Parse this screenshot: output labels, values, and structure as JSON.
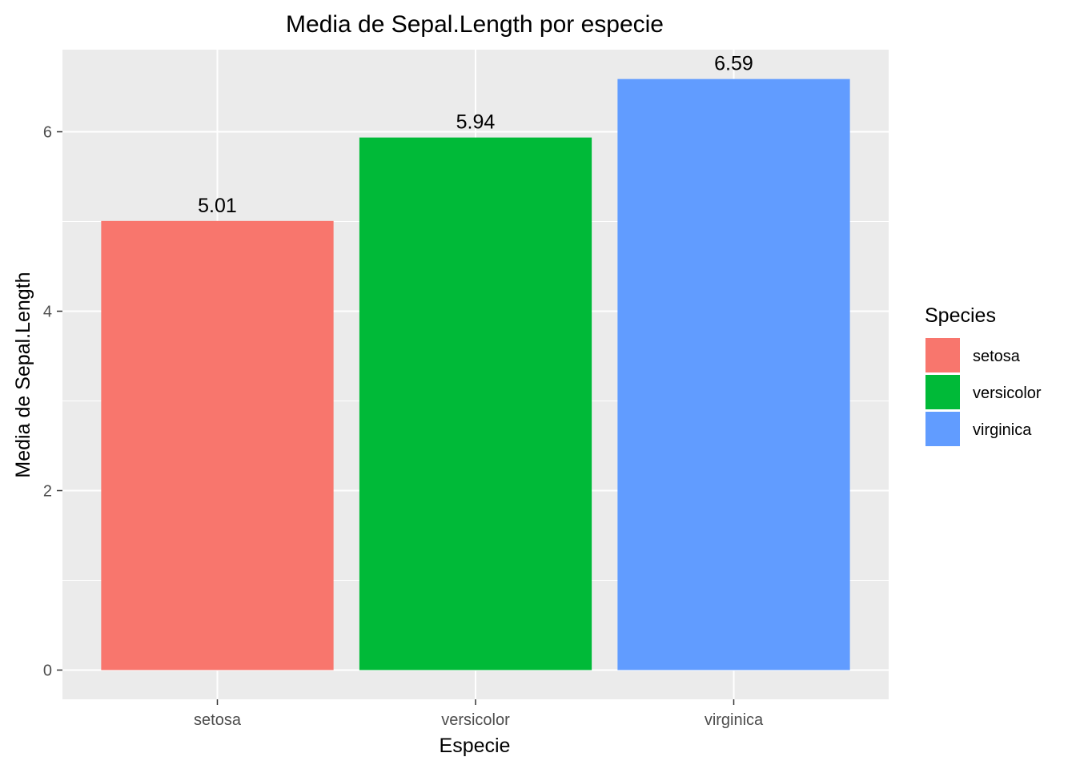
{
  "chart_data": {
    "type": "bar",
    "title": "Media de Sepal.Length por especie",
    "xlabel": "Especie",
    "ylabel": "Media de Sepal.Length",
    "categories": [
      "setosa",
      "versicolor",
      "virginica"
    ],
    "values": [
      5.006,
      5.936,
      6.588
    ],
    "value_labels": [
      "5.01",
      "5.94",
      "6.59"
    ],
    "colors": [
      "#F8766D",
      "#00BA38",
      "#619CFF"
    ],
    "ylim": [
      0,
      6.9
    ],
    "yticks": [
      0,
      2,
      4,
      6
    ],
    "ytick_labels": [
      "0",
      "2",
      "4",
      "6"
    ],
    "grid": true,
    "panel_background": "#EBEBEB",
    "legend": {
      "title": "Species",
      "position": "right",
      "entries": [
        "setosa",
        "versicolor",
        "virginica"
      ]
    }
  }
}
